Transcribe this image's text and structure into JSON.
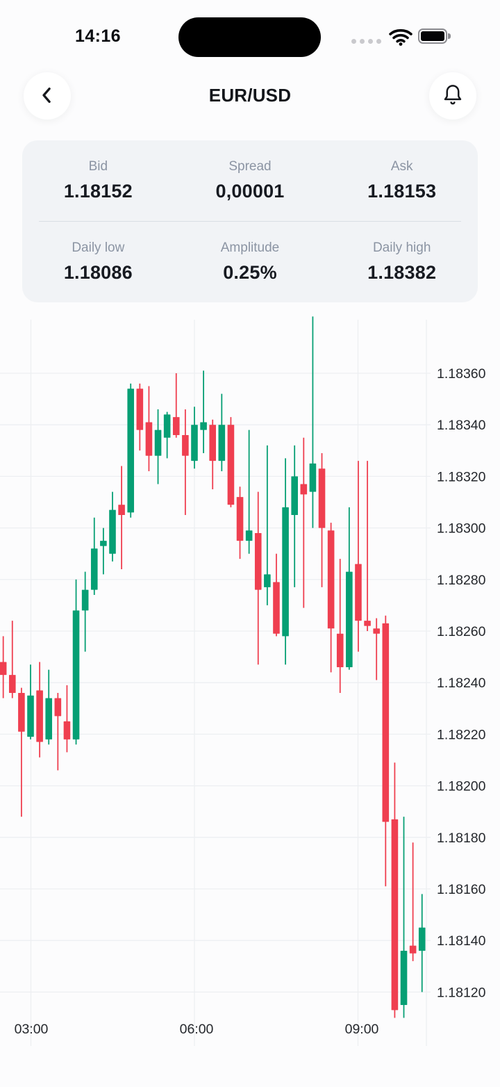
{
  "status_bar": {
    "time": "14:16"
  },
  "header": {
    "title": "EUR/USD"
  },
  "stats": {
    "cells": [
      {
        "label": "Bid",
        "value": "1.18152"
      },
      {
        "label": "Spread",
        "value": "0,00001"
      },
      {
        "label": "Ask",
        "value": "1.18153"
      },
      {
        "label": "Daily low",
        "value": "1.18086"
      },
      {
        "label": "Amplitude",
        "value": "0.25%"
      },
      {
        "label": "Daily high",
        "value": "1.18382"
      }
    ]
  },
  "chart_data": {
    "type": "candlestick",
    "pair": "EUR/USD",
    "interval_minutes": 10,
    "up_color": "#069f74",
    "down_color": "#ef3f50",
    "grid_color": "#edeff2",
    "label_color": "#24272c",
    "ylim": [
      1.18099,
      1.18381
    ],
    "y_ticks": [
      "1.18360",
      "1.18340",
      "1.18320",
      "1.18300",
      "1.18280",
      "1.18260",
      "1.18240",
      "1.18220",
      "1.18200",
      "1.18180",
      "1.18160",
      "1.18140",
      "1.18120"
    ],
    "x_ticks": [
      "03:00",
      "06:00",
      "09:00"
    ],
    "candles": [
      {
        "time": "02:30",
        "open": 1.18248,
        "high": 1.18258,
        "low": 1.18234,
        "close": 1.18243
      },
      {
        "time": "02:40",
        "open": 1.18243,
        "high": 1.18264,
        "low": 1.18234,
        "close": 1.18236
      },
      {
        "time": "02:50",
        "open": 1.18236,
        "high": 1.18238,
        "low": 1.18188,
        "close": 1.18221
      },
      {
        "time": "03:00",
        "open": 1.18219,
        "high": 1.18247,
        "low": 1.18218,
        "close": 1.18235
      },
      {
        "time": "03:10",
        "open": 1.18237,
        "high": 1.18248,
        "low": 1.18211,
        "close": 1.18217
      },
      {
        "time": "03:20",
        "open": 1.18218,
        "high": 1.18245,
        "low": 1.18216,
        "close": 1.18234
      },
      {
        "time": "03:30",
        "open": 1.18234,
        "high": 1.18236,
        "low": 1.18206,
        "close": 1.18227
      },
      {
        "time": "03:40",
        "open": 1.18225,
        "high": 1.18239,
        "low": 1.18213,
        "close": 1.18218
      },
      {
        "time": "03:50",
        "open": 1.18218,
        "high": 1.1828,
        "low": 1.18216,
        "close": 1.18268
      },
      {
        "time": "04:00",
        "open": 1.18268,
        "high": 1.18283,
        "low": 1.18252,
        "close": 1.18276
      },
      {
        "time": "04:10",
        "open": 1.18276,
        "high": 1.18304,
        "low": 1.18274,
        "close": 1.18292
      },
      {
        "time": "04:20",
        "open": 1.18293,
        "high": 1.183,
        "low": 1.18282,
        "close": 1.18295
      },
      {
        "time": "04:30",
        "open": 1.1829,
        "high": 1.18314,
        "low": 1.18287,
        "close": 1.18307
      },
      {
        "time": "04:40",
        "open": 1.18309,
        "high": 1.18324,
        "low": 1.18284,
        "close": 1.18305
      },
      {
        "time": "04:50",
        "open": 1.18306,
        "high": 1.18356,
        "low": 1.18304,
        "close": 1.18354
      },
      {
        "time": "05:00",
        "open": 1.18354,
        "high": 1.18356,
        "low": 1.1833,
        "close": 1.18338
      },
      {
        "time": "05:10",
        "open": 1.18341,
        "high": 1.18355,
        "low": 1.18322,
        "close": 1.18328
      },
      {
        "time": "05:20",
        "open": 1.18328,
        "high": 1.18346,
        "low": 1.18317,
        "close": 1.18338
      },
      {
        "time": "05:30",
        "open": 1.18335,
        "high": 1.18345,
        "low": 1.18327,
        "close": 1.18344
      },
      {
        "time": "05:40",
        "open": 1.18343,
        "high": 1.1836,
        "low": 1.18335,
        "close": 1.18336
      },
      {
        "time": "05:50",
        "open": 1.18336,
        "high": 1.18346,
        "low": 1.18305,
        "close": 1.18328
      },
      {
        "time": "06:00",
        "open": 1.18326,
        "high": 1.18347,
        "low": 1.18323,
        "close": 1.1834
      },
      {
        "time": "06:10",
        "open": 1.18338,
        "high": 1.18361,
        "low": 1.18329,
        "close": 1.18341
      },
      {
        "time": "06:20",
        "open": 1.1834,
        "high": 1.18342,
        "low": 1.18315,
        "close": 1.18326
      },
      {
        "time": "06:30",
        "open": 1.18326,
        "high": 1.18352,
        "low": 1.18322,
        "close": 1.1834
      },
      {
        "time": "06:40",
        "open": 1.1834,
        "high": 1.18343,
        "low": 1.18308,
        "close": 1.18309
      },
      {
        "time": "06:50",
        "open": 1.18312,
        "high": 1.18316,
        "low": 1.18288,
        "close": 1.18295
      },
      {
        "time": "07:00",
        "open": 1.18295,
        "high": 1.18338,
        "low": 1.1829,
        "close": 1.18299
      },
      {
        "time": "07:10",
        "open": 1.18298,
        "high": 1.18314,
        "low": 1.18247,
        "close": 1.18276
      },
      {
        "time": "07:20",
        "open": 1.18277,
        "high": 1.18332,
        "low": 1.1827,
        "close": 1.18282
      },
      {
        "time": "07:30",
        "open": 1.18279,
        "high": 1.1829,
        "low": 1.18258,
        "close": 1.18259
      },
      {
        "time": "07:40",
        "open": 1.18258,
        "high": 1.18327,
        "low": 1.18247,
        "close": 1.18308
      },
      {
        "time": "07:50",
        "open": 1.18305,
        "high": 1.18332,
        "low": 1.18277,
        "close": 1.1832
      },
      {
        "time": "08:00",
        "open": 1.18317,
        "high": 1.18335,
        "low": 1.18269,
        "close": 1.18313
      },
      {
        "time": "08:10",
        "open": 1.18314,
        "high": 1.18382,
        "low": 1.183,
        "close": 1.18325
      },
      {
        "time": "08:20",
        "open": 1.18323,
        "high": 1.18329,
        "low": 1.18277,
        "close": 1.183
      },
      {
        "time": "08:30",
        "open": 1.18299,
        "high": 1.18302,
        "low": 1.18244,
        "close": 1.18261
      },
      {
        "time": "08:40",
        "open": 1.18259,
        "high": 1.18288,
        "low": 1.18236,
        "close": 1.18246
      },
      {
        "time": "08:50",
        "open": 1.18246,
        "high": 1.18308,
        "low": 1.18245,
        "close": 1.18283
      },
      {
        "time": "09:00",
        "open": 1.18286,
        "high": 1.18326,
        "low": 1.18252,
        "close": 1.18264
      },
      {
        "time": "09:10",
        "open": 1.18264,
        "high": 1.18326,
        "low": 1.1826,
        "close": 1.18262
      },
      {
        "time": "09:20",
        "open": 1.18261,
        "high": 1.18265,
        "low": 1.18241,
        "close": 1.18259
      },
      {
        "time": "09:30",
        "open": 1.18263,
        "high": 1.18266,
        "low": 1.18161,
        "close": 1.18186
      },
      {
        "time": "09:40",
        "open": 1.18187,
        "high": 1.18209,
        "low": 1.1811,
        "close": 1.18113
      },
      {
        "time": "09:50",
        "open": 1.18115,
        "high": 1.18188,
        "low": 1.1811,
        "close": 1.18136
      },
      {
        "time": "10:00",
        "open": 1.18138,
        "high": 1.18178,
        "low": 1.18132,
        "close": 1.18135
      },
      {
        "time": "10:10",
        "open": 1.18136,
        "high": 1.18158,
        "low": 1.1812,
        "close": 1.18145
      }
    ]
  }
}
